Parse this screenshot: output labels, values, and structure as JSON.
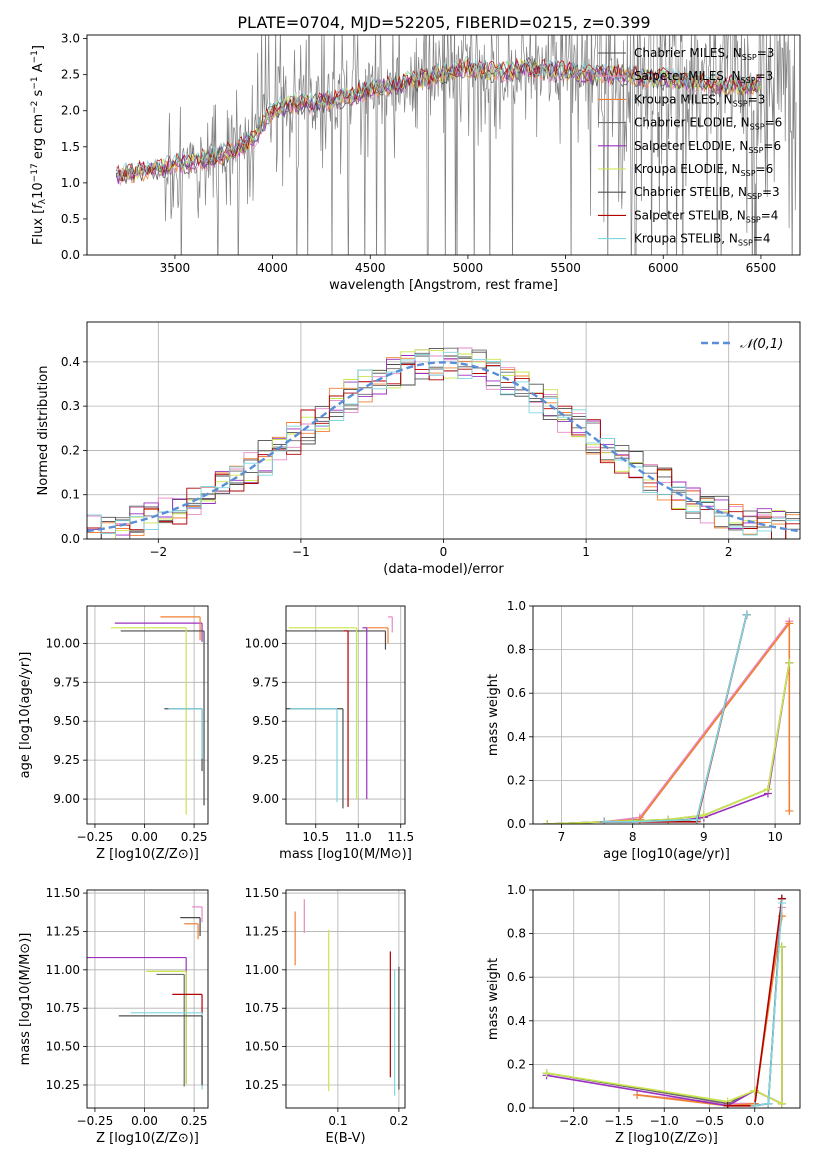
{
  "figure": {
    "title": "PLATE=0704, MJD=52205, FIBERID=0215, z=0.399"
  },
  "model_styles": [
    {
      "name": "Chabrier MILES",
      "color": "#4a4a4a"
    },
    {
      "name": "Salpeter MILES",
      "color": "#e68ac6"
    },
    {
      "name": "Kroupa MILES",
      "color": "#f08030"
    },
    {
      "name": "Chabrier ELODIE",
      "color": "#6b6b6b"
    },
    {
      "name": "Salpeter ELODIE",
      "color": "#9b30c0"
    },
    {
      "name": "Kroupa ELODIE",
      "color": "#c9e64a"
    },
    {
      "name": "Chabrier STELIB",
      "color": "#505050"
    },
    {
      "name": "Salpeter STELIB",
      "color": "#b00000"
    },
    {
      "name": "Kroupa STELIB",
      "color": "#7fd6e0"
    }
  ],
  "chart_data": [
    {
      "id": "spectrum",
      "type": "line",
      "title": "PLATE=0704, MJD=52205, FIBERID=0215, z=0.399",
      "xlabel": "wavelength [Angstrom, rest frame]",
      "ylabel": "Flux [f_λ 10^-17 erg cm^-2 s^-1 A^-1]",
      "xlim": [
        3050,
        6700
      ],
      "ylim": [
        0,
        3.05
      ],
      "xticks": [
        3500,
        4000,
        4500,
        5000,
        5500,
        6000,
        6500
      ],
      "yticks": [
        0.0,
        0.5,
        1.0,
        1.5,
        2.0,
        2.5,
        3.0
      ],
      "legend": [
        "Chabrier MILES, N_SSP=3",
        "Salpeter MILES, N_SSP=3",
        "Kroupa MILES, N_SSP=3",
        "Chabrier ELODIE, N_SSP=6",
        "Salpeter ELODIE, N_SSP=6",
        "Kroupa ELODIE, N_SSP=6",
        "Chabrier STELIB, N_SSP=3",
        "Salpeter STELIB, N_SSP=4",
        "Kroupa STELIB, N_SSP=4"
      ],
      "legend_loc": "upper-right",
      "continuum": {
        "x": [
          3200,
          3300,
          3400,
          3500,
          3600,
          3700,
          3800,
          3900,
          4000,
          4100,
          4200,
          4300,
          4400,
          4500,
          4600,
          4700,
          4800,
          4900,
          5000,
          5100,
          5200,
          5300,
          5400,
          5500,
          5600,
          5700,
          5800,
          5900,
          6000,
          6100,
          6200,
          6300,
          6400,
          6500
        ],
        "y": [
          1.1,
          1.15,
          1.2,
          1.25,
          1.3,
          1.35,
          1.45,
          1.6,
          2.0,
          2.1,
          2.1,
          2.15,
          2.2,
          2.3,
          2.35,
          2.4,
          2.45,
          2.55,
          2.6,
          2.55,
          2.55,
          2.6,
          2.55,
          2.55,
          2.5,
          2.5,
          2.5,
          2.45,
          2.45,
          2.4,
          2.4,
          2.35,
          2.35,
          2.35
        ]
      }
    },
    {
      "id": "residuals",
      "type": "histogram",
      "xlabel": "(data-model)/error",
      "ylabel": "Normed distribution",
      "xlim": [
        -2.5,
        2.5
      ],
      "ylim": [
        0,
        0.49
      ],
      "xticks": [
        -2,
        -1,
        0,
        1,
        2
      ],
      "yticks": [
        0.0,
        0.1,
        0.2,
        0.3,
        0.4
      ],
      "legend": [
        "𝒩(0,1)"
      ],
      "legend_loc": "upper-right",
      "bin_width": 0.1
    },
    {
      "id": "age-vs-Z",
      "type": "scatter",
      "xlabel": "Z [log10(Z/Z⊙)]",
      "ylabel": "age  [log10(age/yr)]",
      "xlim": [
        -0.29,
        0.32
      ],
      "ylim": [
        8.84,
        10.24
      ],
      "xticks": [
        -0.25,
        0.0,
        0.25
      ],
      "xtick_labels": [
        "−0.25",
        "0.00",
        "0.25"
      ],
      "yticks": [
        9.0,
        9.25,
        9.5,
        9.75,
        10.0
      ],
      "ytick_labels": [
        "9.00",
        "9.25",
        "9.50",
        "9.75",
        "10.00"
      ],
      "points": [
        {
          "x": 0.29,
          "y": 10.13,
          "xerr": [
            0.44,
            0.0
          ],
          "yerr": [
            0.12,
            0.0
          ],
          "color": "#9b30c0"
        },
        {
          "x": 0.28,
          "y": 10.17,
          "xerr": [
            0.2,
            0.0
          ],
          "yerr": [
            0.15,
            0.0
          ],
          "color": "#f08030"
        },
        {
          "x": 0.3,
          "y": 10.08,
          "xerr": [
            0.42,
            0.0
          ],
          "yerr": [
            1.12,
            0.0
          ],
          "color": "#4a4a4a"
        },
        {
          "x": 0.21,
          "y": 10.1,
          "xerr": [
            0.38,
            0.0
          ],
          "yerr": [
            1.2,
            0.0
          ],
          "color": "#c9e64a"
        },
        {
          "x": 0.29,
          "y": 9.58,
          "xerr": [
            0.19,
            0.0
          ],
          "yerr": [
            0.4,
            0.0
          ],
          "color": "#505050"
        },
        {
          "x": 0.29,
          "y": 9.58,
          "xerr": [
            0.17,
            0.0
          ],
          "yerr": [
            0.32,
            0.0
          ],
          "color": "#7fd6e0"
        }
      ]
    },
    {
      "id": "age-vs-mass",
      "type": "scatter",
      "xlabel": "mass [log10(M/M⊙)]",
      "ylabel": "",
      "xlim": [
        10.15,
        11.55
      ],
      "ylim": [
        8.84,
        10.24
      ],
      "xticks": [
        10.5,
        11.0,
        11.5
      ],
      "xtick_labels": [
        "10.5",
        "11.0",
        "11.5"
      ],
      "yticks": [
        9.0,
        9.25,
        9.5,
        9.75,
        10.0
      ],
      "ytick_labels": [
        "9.00",
        "9.25",
        "9.50",
        "9.75",
        "10.00"
      ],
      "points": [
        {
          "x": 11.4,
          "y": 10.17,
          "xerr": [
            0.05,
            0.0
          ],
          "yerr": [
            0.1,
            0.0
          ],
          "color": "#e68ac6"
        },
        {
          "x": 11.35,
          "y": 10.1,
          "xerr": [
            0.25,
            0.0
          ],
          "yerr": [
            0.1,
            0.0
          ],
          "color": "#f08030"
        },
        {
          "x": 11.32,
          "y": 10.08,
          "xerr": [
            1.2,
            0.0
          ],
          "yerr": [
            0.12,
            0.0
          ],
          "color": "#4a4a4a"
        },
        {
          "x": 10.98,
          "y": 10.1,
          "xerr": [
            0.8,
            0.0
          ],
          "yerr": [
            1.1,
            0.0
          ],
          "color": "#c9e64a"
        },
        {
          "x": 11.1,
          "y": 10.1,
          "xerr": [
            0.05,
            0.0
          ],
          "yerr": [
            1.1,
            0.0
          ],
          "color": "#9b30c0"
        },
        {
          "x": 10.88,
          "y": 10.08,
          "xerr": [
            0.05,
            0.0
          ],
          "yerr": [
            1.13,
            0.0
          ],
          "color": "#b00000"
        },
        {
          "x": 10.82,
          "y": 9.58,
          "xerr": [
            0.67,
            0.0
          ],
          "yerr": [
            0.64,
            0.0
          ],
          "color": "#505050"
        },
        {
          "x": 10.75,
          "y": 9.58,
          "xerr": [
            0.55,
            0.0
          ],
          "yerr": [
            0.6,
            0.0
          ],
          "color": "#7fd6e0"
        }
      ]
    },
    {
      "id": "mass-weight-vs-age",
      "type": "line",
      "xlabel": "age  [log10(age/yr)]",
      "ylabel": "mass weight",
      "xlim": [
        6.6,
        10.35
      ],
      "ylim": [
        0,
        1.0
      ],
      "xticks": [
        7,
        8,
        9,
        10
      ],
      "yticks": [
        0.0,
        0.2,
        0.4,
        0.6,
        0.8,
        1.0
      ],
      "ytick_labels": [
        "0.0",
        "0.2",
        "0.4",
        "0.6",
        "0.8",
        "1.0"
      ],
      "series": [
        {
          "color": "#4a4a4a",
          "x": [
            7.6,
            8.0,
            8.9,
            9.6
          ],
          "y": [
            0.01,
            0.01,
            0.02,
            0.96
          ]
        },
        {
          "color": "#e68ac6",
          "x": [
            7.6,
            8.1,
            10.2
          ],
          "y": [
            0.01,
            0.03,
            0.93
          ]
        },
        {
          "color": "#f08030",
          "x": [
            7.6,
            8.1,
            10.2,
            10.2
          ],
          "y": [
            0.01,
            0.02,
            0.92,
            0.06
          ]
        },
        {
          "color": "#6b6b6b",
          "x": [
            6.8,
            7.6,
            8.5,
            9.0,
            9.9,
            10.2
          ],
          "y": [
            0.0,
            0.01,
            0.02,
            0.04,
            0.16,
            0.74
          ]
        },
        {
          "color": "#9b30c0",
          "x": [
            6.8,
            7.6,
            8.5,
            9.0,
            9.9,
            10.2
          ],
          "y": [
            0.0,
            0.01,
            0.01,
            0.03,
            0.14,
            0.74
          ]
        },
        {
          "color": "#c9e64a",
          "x": [
            6.8,
            7.6,
            8.5,
            9.0,
            9.9,
            10.2
          ],
          "y": [
            0.0,
            0.01,
            0.02,
            0.04,
            0.16,
            0.74
          ]
        },
        {
          "color": "#505050",
          "x": [
            7.6,
            8.0,
            8.9,
            9.6
          ],
          "y": [
            0.01,
            0.01,
            0.02,
            0.96
          ]
        },
        {
          "color": "#b00000",
          "x": [
            7.6,
            8.0,
            8.9,
            9.6
          ],
          "y": [
            0.01,
            0.01,
            0.01,
            0.96
          ]
        },
        {
          "color": "#7fd6e0",
          "x": [
            7.6,
            8.0,
            8.9,
            9.6
          ],
          "y": [
            0.01,
            0.01,
            0.02,
            0.96
          ]
        }
      ]
    },
    {
      "id": "mass-vs-Z",
      "type": "scatter",
      "xlabel": "Z [log10(Z/Z⊙)]",
      "ylabel": "mass [log10(M/M⊙)]",
      "xlim": [
        -0.29,
        0.32
      ],
      "ylim": [
        10.1,
        11.52
      ],
      "xticks": [
        -0.25,
        0.0,
        0.25
      ],
      "xtick_labels": [
        "−0.25",
        "0.00",
        "0.25"
      ],
      "yticks": [
        10.25,
        10.5,
        10.75,
        11.0,
        11.25,
        11.5
      ],
      "ytick_labels": [
        "10.25",
        "10.50",
        "10.75",
        "11.00",
        "11.25",
        "11.50"
      ],
      "points": [
        {
          "x": 0.29,
          "y": 11.41,
          "xerr": [
            0.05,
            0.0
          ],
          "yerr": [
            0.1,
            0.0
          ],
          "color": "#e68ac6"
        },
        {
          "x": 0.28,
          "y": 11.34,
          "xerr": [
            0.1,
            0.0
          ],
          "yerr": [
            0.12,
            0.0
          ],
          "color": "#4a4a4a"
        },
        {
          "x": 0.27,
          "y": 11.3,
          "xerr": [
            0.07,
            0.0
          ],
          "yerr": [
            0.1,
            0.0
          ],
          "color": "#f08030"
        },
        {
          "x": 0.21,
          "y": 11.08,
          "xerr": [
            0.5,
            0.0
          ],
          "yerr": [
            0.82,
            0.0
          ],
          "color": "#9b30c0"
        },
        {
          "x": 0.21,
          "y": 10.99,
          "xerr": [
            0.2,
            0.0
          ],
          "yerr": [
            0.74,
            0.0
          ],
          "color": "#c9e64a"
        },
        {
          "x": 0.2,
          "y": 10.97,
          "xerr": [
            0.14,
            0.0
          ],
          "yerr": [
            0.73,
            0.0
          ],
          "color": "#6b6b6b"
        },
        {
          "x": 0.29,
          "y": 10.84,
          "xerr": [
            0.15,
            0.0
          ],
          "yerr": [
            0.6,
            0.0
          ],
          "color": "#b00000"
        },
        {
          "x": 0.29,
          "y": 10.72,
          "xerr": [
            0.36,
            0.0
          ],
          "yerr": [
            0.5,
            0.0
          ],
          "color": "#7fd6e0"
        },
        {
          "x": 0.29,
          "y": 10.7,
          "xerr": [
            0.42,
            0.0
          ],
          "yerr": [
            0.45,
            0.0
          ],
          "color": "#505050"
        }
      ]
    },
    {
      "id": "mass-vs-EBV",
      "type": "scatter",
      "xlabel": "E(B-V)",
      "ylabel": "",
      "xlim": [
        0.015,
        0.21
      ],
      "ylim": [
        10.1,
        11.52
      ],
      "xticks": [
        0.1,
        0.2
      ],
      "xtick_labels": [
        "0.1",
        "0.2"
      ],
      "yticks": [
        10.25,
        10.5,
        10.75,
        11.0,
        11.25,
        11.5
      ],
      "ytick_labels": [
        "10.25",
        "10.50",
        "10.75",
        "11.00",
        "11.25",
        "11.50"
      ],
      "points": [
        {
          "x": 0.03,
          "y": 11.38,
          "yerr": [
            0.35,
            0.0
          ],
          "color": "#f08030"
        },
        {
          "x": 0.045,
          "y": 11.46,
          "yerr": [
            0.22,
            0.0
          ],
          "color": "#e68ac6"
        },
        {
          "x": 0.085,
          "y": 11.26,
          "yerr": [
            1.05,
            0.0
          ],
          "color": "#c9e64a"
        },
        {
          "x": 0.186,
          "y": 11.12,
          "yerr": [
            0.82,
            0.0
          ],
          "color": "#b00000"
        },
        {
          "x": 0.193,
          "y": 11.0,
          "yerr": [
            0.82,
            0.0
          ],
          "color": "#7fd6e0"
        },
        {
          "x": 0.2,
          "y": 11.02,
          "yerr": [
            0.8,
            0.0
          ],
          "color": "#505050"
        }
      ]
    },
    {
      "id": "mass-weight-vs-Z",
      "type": "line",
      "xlabel": "Z [log10(Z/Z⊙)]",
      "ylabel": "mass weight",
      "xlim": [
        -2.45,
        0.5
      ],
      "ylim": [
        0,
        1.0
      ],
      "xticks": [
        -2.0,
        -1.5,
        -1.0,
        -0.5,
        0.0
      ],
      "xtick_labels": [
        "−2.0",
        "−1.5",
        "−1.0",
        "−0.5",
        "0.0"
      ],
      "yticks": [
        0.0,
        0.2,
        0.4,
        0.6,
        0.8,
        1.0
      ],
      "ytick_labels": [
        "0.0",
        "0.2",
        "0.4",
        "0.6",
        "0.8",
        "1.0"
      ],
      "series": [
        {
          "color": "#4a4a4a",
          "x": [
            0.0,
            0.0,
            0.15,
            0.3
          ],
          "y": [
            0.01,
            0.01,
            0.02,
            0.96
          ]
        },
        {
          "color": "#e68ac6",
          "x": [
            -1.3,
            -0.3,
            0.0,
            0.3
          ],
          "y": [
            0.06,
            0.02,
            0.02,
            0.92
          ]
        },
        {
          "color": "#f08030",
          "x": [
            -1.3,
            -0.3,
            0.0,
            0.3
          ],
          "y": [
            0.06,
            0.01,
            0.02,
            0.88
          ]
        },
        {
          "color": "#6b6b6b",
          "x": [
            -2.3,
            -0.3,
            0.0,
            0.3,
            0.3
          ],
          "y": [
            0.16,
            0.02,
            0.08,
            0.02,
            0.74
          ]
        },
        {
          "color": "#9b30c0",
          "x": [
            -2.3,
            -0.3,
            0.0,
            0.3,
            0.3
          ],
          "y": [
            0.15,
            0.01,
            0.08,
            0.02,
            0.74
          ]
        },
        {
          "color": "#c9e64a",
          "x": [
            -2.3,
            -0.3,
            0.0,
            0.3,
            0.3
          ],
          "y": [
            0.16,
            0.03,
            0.08,
            0.02,
            0.74
          ]
        },
        {
          "color": "#505050",
          "x": [
            0.0,
            0.0,
            0.15,
            0.3
          ],
          "y": [
            0.01,
            0.01,
            0.02,
            0.96
          ]
        },
        {
          "color": "#b00000",
          "x": [
            -0.3,
            0.0,
            0.3
          ],
          "y": [
            0.01,
            0.01,
            0.96
          ]
        },
        {
          "color": "#7fd6e0",
          "x": [
            0.0,
            0.0,
            0.15,
            0.3
          ],
          "y": [
            0.01,
            0.01,
            0.02,
            0.94
          ]
        }
      ]
    }
  ]
}
